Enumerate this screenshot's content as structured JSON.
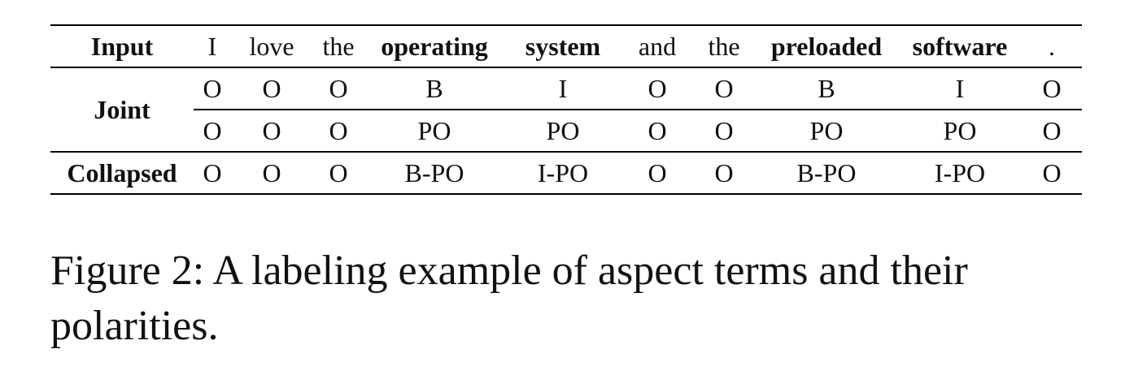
{
  "table": {
    "input_label": "Input",
    "joint_label": "Joint",
    "collapsed_label": "Collapsed",
    "tokens": [
      {
        "text": "I",
        "bold": false
      },
      {
        "text": "love",
        "bold": false
      },
      {
        "text": "the",
        "bold": false
      },
      {
        "text": "operating",
        "bold": true
      },
      {
        "text": "system",
        "bold": true
      },
      {
        "text": "and",
        "bold": false
      },
      {
        "text": "the",
        "bold": false
      },
      {
        "text": "preloaded",
        "bold": true
      },
      {
        "text": "software",
        "bold": true
      },
      {
        "text": ".",
        "bold": false
      }
    ],
    "joint_boundary": [
      "O",
      "O",
      "O",
      "B",
      "I",
      "O",
      "O",
      "B",
      "I",
      "O"
    ],
    "joint_polarity": [
      "O",
      "O",
      "O",
      "PO",
      "PO",
      "O",
      "O",
      "PO",
      "PO",
      "O"
    ],
    "collapsed": [
      "O",
      "O",
      "O",
      "B-PO",
      "I-PO",
      "O",
      "O",
      "B-PO",
      "I-PO",
      "O"
    ]
  },
  "caption": "Figure 2: A labeling example of aspect terms and their polarities."
}
